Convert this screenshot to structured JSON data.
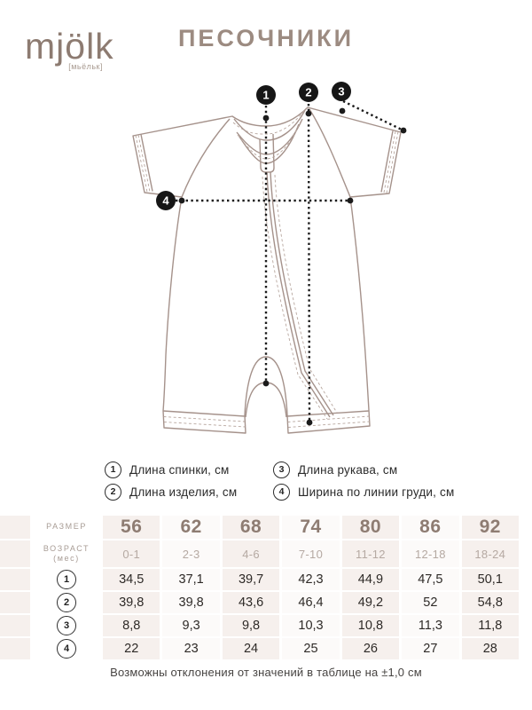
{
  "brand": {
    "logo": "mjölk",
    "logo_sub": "[мьёльк]"
  },
  "title": "ПЕСОЧНИКИ",
  "measurements": [
    {
      "id": "1",
      "label": "Длина спинки, см"
    },
    {
      "id": "2",
      "label": "Длина изделия, см"
    },
    {
      "id": "3",
      "label": "Длина рукава, см"
    },
    {
      "id": "4",
      "label": "Ширина по линии груди, см"
    }
  ],
  "table": {
    "size_label": "РАЗМЕР",
    "age_label": "ВОЗРАСТ",
    "age_label_sub": "(мес)",
    "sizes": [
      "56",
      "62",
      "68",
      "74",
      "80",
      "86",
      "92"
    ],
    "ages": [
      "0-1",
      "2-3",
      "4-6",
      "7-10",
      "11-12",
      "12-18",
      "18-24"
    ],
    "rows": [
      {
        "id": "1",
        "values": [
          "34,5",
          "37,1",
          "39,7",
          "42,3",
          "44,9",
          "47,5",
          "50,1"
        ]
      },
      {
        "id": "2",
        "values": [
          "39,8",
          "39,8",
          "43,6",
          "46,4",
          "49,2",
          "52",
          "54,8"
        ]
      },
      {
        "id": "3",
        "values": [
          "8,8",
          "9,3",
          "9,8",
          "10,3",
          "10,8",
          "11,3",
          "11,8"
        ]
      },
      {
        "id": "4",
        "values": [
          "22",
          "23",
          "24",
          "25",
          "26",
          "27",
          "28"
        ]
      }
    ]
  },
  "footer": {
    "note": "Возможны отклонения от значений в таблице на ±1,0 см"
  },
  "colors": {
    "accent_taupe": "#8e7c72",
    "title_taupe": "#9c8b81",
    "beige_cell": "#f6f0ed",
    "garment_line": "#a5928b",
    "annotation_black": "#1b1b1b",
    "age_gray": "#b5a9a2"
  }
}
